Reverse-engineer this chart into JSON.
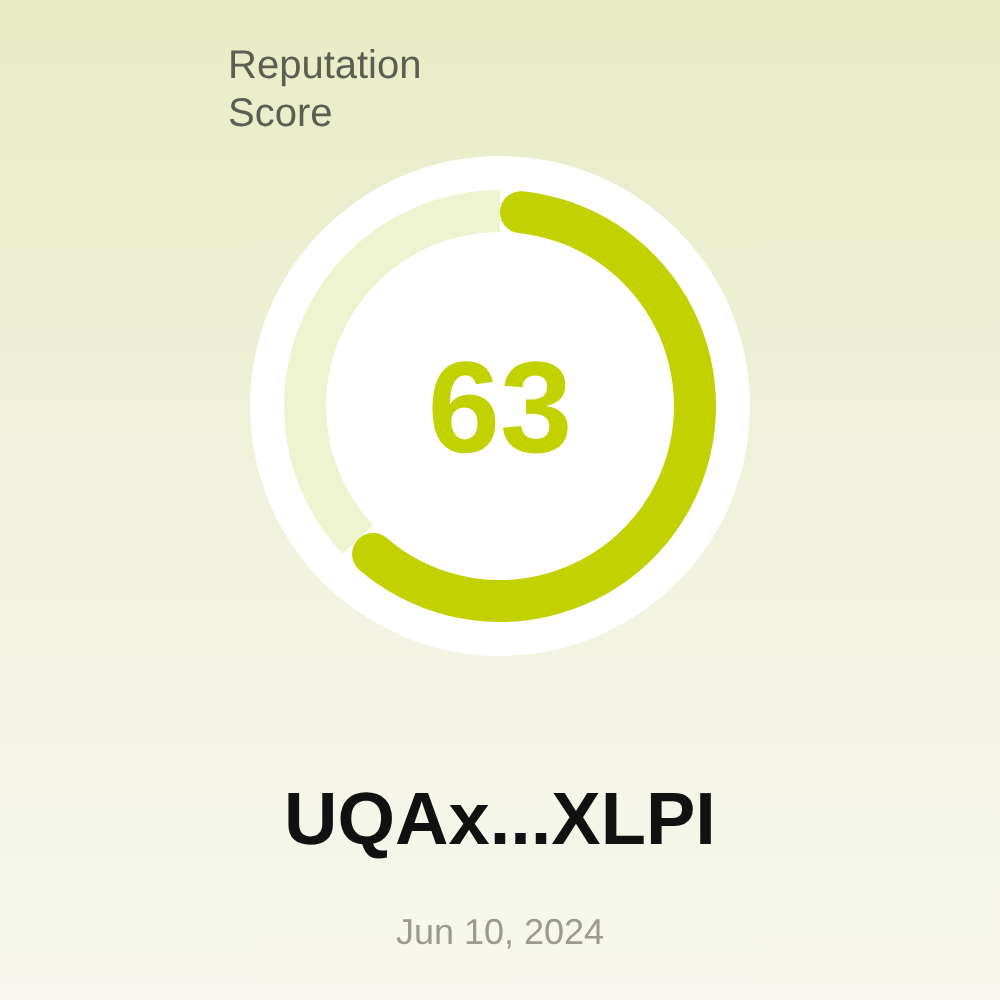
{
  "chart_data": {
    "type": "donut",
    "title": "Reputation Score",
    "categories": [
      null,
      null
    ],
    "values": [
      63,
      37
    ],
    "colors": [
      "#c2d100",
      "#eef3d0"
    ],
    "value_labels": [
      "63",
      null
    ],
    "annotations": [
      "UQAx...XLPI",
      "Jun 10, 2024"
    ]
  }
}
